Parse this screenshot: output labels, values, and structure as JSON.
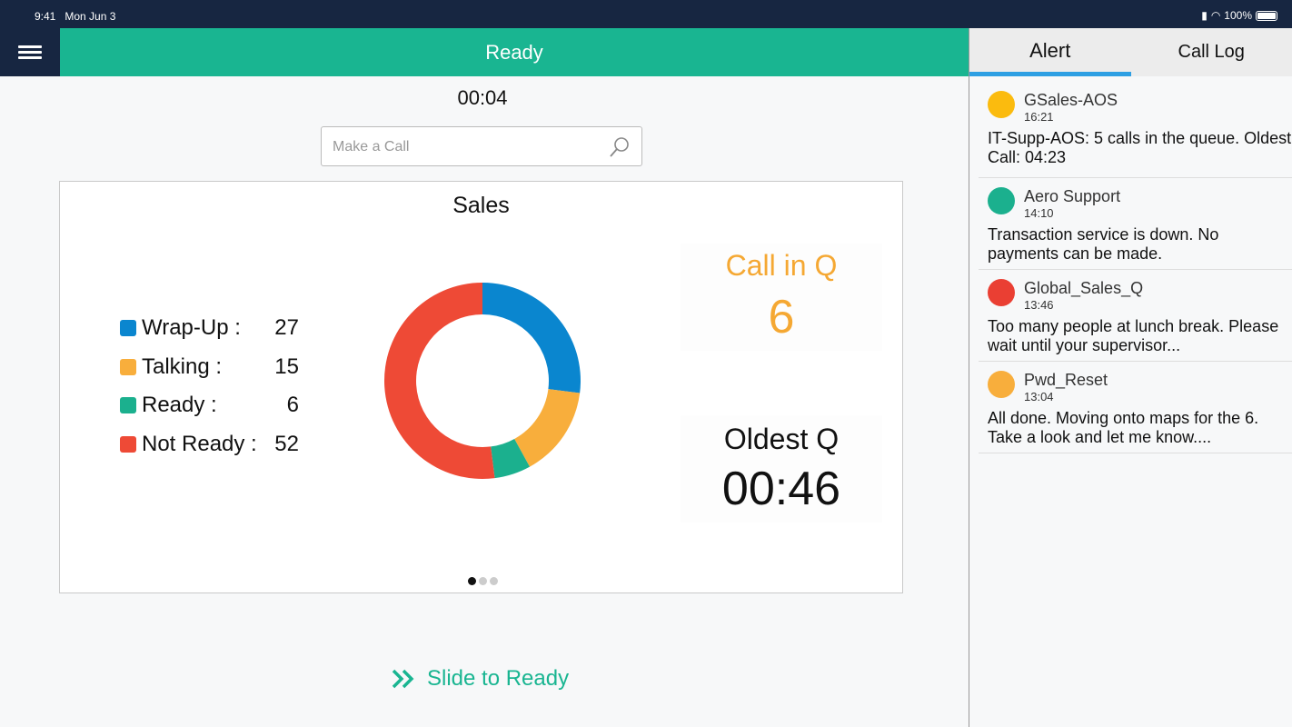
{
  "status_bar": {
    "time": "9:41",
    "date": "Mon Jun 3",
    "battery": "100%"
  },
  "header": {
    "title": "Ready"
  },
  "timer": "00:04",
  "search": {
    "placeholder": "Make a Call"
  },
  "card": {
    "title": "Sales",
    "call_in_q_label": "Call in Q",
    "call_in_q_value": "6",
    "oldest_q_label": "Oldest Q",
    "oldest_q_value": "00:46",
    "page": 1,
    "pages": 3
  },
  "chart_data": {
    "type": "pie",
    "donut": true,
    "categories": [
      "Wrap-Up :",
      "Talking :",
      "Ready :",
      "Not Ready :"
    ],
    "values": [
      27,
      15,
      6,
      52
    ],
    "colors": [
      "#0a86cf",
      "#f8ae3c",
      "#1bb08e",
      "#ee4a36"
    ]
  },
  "slide": {
    "label": "Slide to Ready"
  },
  "sidebar": {
    "tabs": [
      {
        "label": "Alert",
        "active": true
      },
      {
        "label": "Call Log",
        "active": false
      }
    ],
    "alerts": [
      {
        "name": "GSales-AOS",
        "time": "16:21",
        "message": "IT-Supp-AOS: 5 calls in the queue. Oldest Call: 04:23",
        "color": "#fbbb0e"
      },
      {
        "name": "Aero Support",
        "time": "14:10",
        "message": "Transaction service is down. No payments can be made.",
        "color": "#1bb08e"
      },
      {
        "name": "Global_Sales_Q",
        "time": "13:46",
        "message": "Too many people at lunch break. Please wait until your supervisor...",
        "color": "#ea3f33"
      },
      {
        "name": "Pwd_Reset",
        "time": "13:04",
        "message": "All done. Moving onto maps for the 6. Take a look and let me know....",
        "color": "#f8ae3c"
      }
    ]
  }
}
